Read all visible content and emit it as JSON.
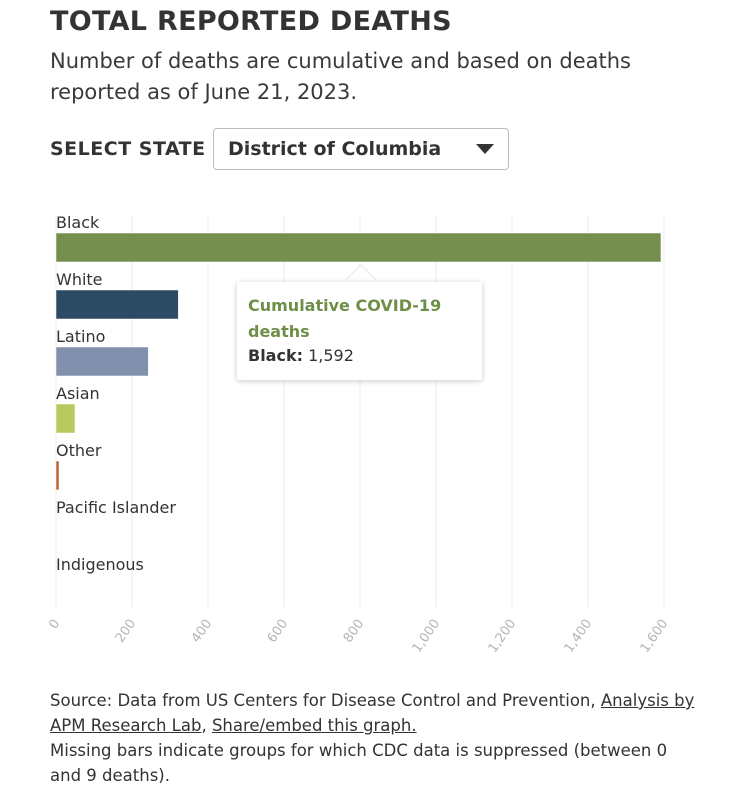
{
  "title": "TOTAL REPORTED DEATHS",
  "subtitle": "Number of deaths are cumulative and based on deaths reported as of June 21, 2023.",
  "selector": {
    "label": "SELECT STATE",
    "selected": "District of Columbia"
  },
  "chart_data": {
    "type": "bar",
    "orientation": "horizontal",
    "categories": [
      "Black",
      "White",
      "Latino",
      "Asian",
      "Other",
      "Pacific Islander",
      "Indigenous"
    ],
    "values": [
      1592,
      322,
      243,
      50,
      8,
      null,
      null
    ],
    "colors": [
      "#758f4e",
      "#2c4a63",
      "#8090ad",
      "#bac95d",
      "#b96a33",
      "#cccccc",
      "#cccccc"
    ],
    "xlim": [
      0,
      1600
    ],
    "xticks": [
      "0",
      "200",
      "400",
      "600",
      "800",
      "1,000",
      "1,200",
      "1,400",
      "1,600"
    ],
    "grid": true
  },
  "tooltip": {
    "title": "Cumulative COVID-19 deaths",
    "category": "Black:",
    "value": "1,592"
  },
  "footer": {
    "source_prefix": "Source: Data from US Centers for Disease Control and Prevention,",
    "link1": "Analysis by APM Research Lab",
    "separator": ",",
    "link2": "Share/embed this graph.",
    "note": "Missing bars indicate groups for which CDC data is suppressed (between 0 and 9 deaths)."
  }
}
